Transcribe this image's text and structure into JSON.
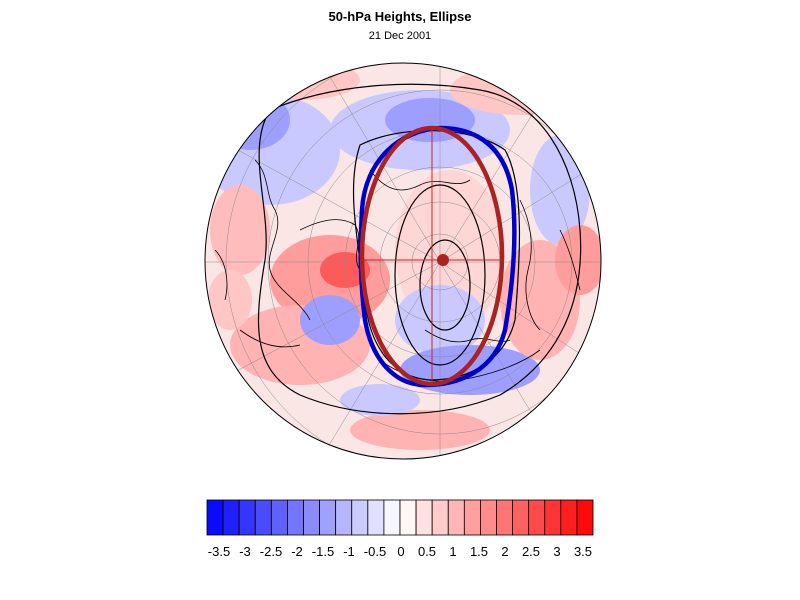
{
  "figure": {
    "title": "50-hPa Heights, Ellipse",
    "date": "21 Dec 2001"
  },
  "colorbar": {
    "labels": [
      "-3.5",
      "-3",
      "-2.5",
      "-2",
      "-1.5",
      "-1",
      "-0.5",
      "0",
      "0.5",
      "1",
      "1.5",
      "2",
      "2.5",
      "3",
      "3.5"
    ],
    "colors": [
      "#0a0aff",
      "#1f1fff",
      "#3535ff",
      "#4a4aff",
      "#6060ff",
      "#7575ff",
      "#8b8bff",
      "#a0a0ff",
      "#b6b6ff",
      "#cbcbff",
      "#e1e1ff",
      "#f6f6ff",
      "#fff6f6",
      "#ffe1e1",
      "#ffcbcb",
      "#ffb6b6",
      "#ffa0a0",
      "#ff8b8b",
      "#ff7575",
      "#ff6060",
      "#ff4a4a",
      "#ff3535",
      "#ff1f1f",
      "#ff0a0a"
    ]
  },
  "colors": {
    "vortex_contour": "#0000cc",
    "fitted_ellipse": "#aa2222",
    "ellipse_center": "#aa2222",
    "height_contours": "#000000",
    "coastlines": "#000000"
  }
}
